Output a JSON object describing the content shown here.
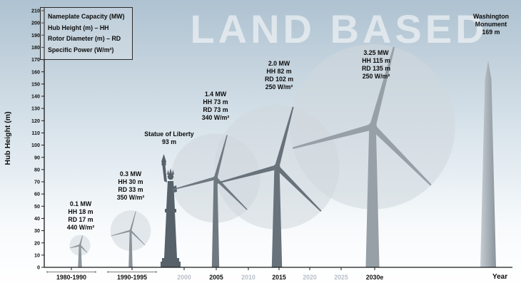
{
  "watermark": "LAND BASED",
  "axes": {
    "ylabel": "Hub Height (m)",
    "xlabel": "Year"
  },
  "legend": {
    "lines": [
      "Nameplate Capacity (MW)",
      "Hub Height (m) – HH",
      "Rotor Diameter (m) – RD",
      "Specific Power (W/m²)"
    ]
  },
  "colors": {
    "rotor_circle": "#cfd7dd",
    "ink": "#111111",
    "muted_tick": "#b6bfc7",
    "silhouette": "#57616a",
    "monument_light": "#c6cdd3",
    "monument_dark": "#8a939b",
    "turbine_grays": [
      "#8e979e",
      "#8a939a",
      "#6f7980",
      "#68727a",
      "#97a0a7"
    ]
  },
  "chart_data": {
    "type": "scatter",
    "title": "LAND BASED",
    "ylabel": "Hub Height (m)",
    "xlabel": "Year",
    "ylim": [
      0,
      210
    ],
    "y_tick_step": 10,
    "x_ticks": [
      {
        "label": "1980-1990",
        "emphasis": true
      },
      {
        "label": "1990-1995",
        "emphasis": true
      },
      {
        "label": "2000",
        "emphasis": false
      },
      {
        "label": "2005",
        "emphasis": true
      },
      {
        "label": "2010",
        "emphasis": false
      },
      {
        "label": "2015",
        "emphasis": true
      },
      {
        "label": "2020",
        "emphasis": false
      },
      {
        "label": "2025",
        "emphasis": false
      },
      {
        "label": "2030e",
        "emphasis": true
      }
    ],
    "turbines": [
      {
        "period": "1980-1990",
        "capacity_mw": 0.1,
        "hub_height_m": 18,
        "rotor_diameter_m": 17,
        "specific_power_w_m2": 440,
        "label_lines": [
          "0.1 MW",
          "HH 18 m",
          "RD 17 m",
          "440 W/m²"
        ]
      },
      {
        "period": "1990-1995",
        "capacity_mw": 0.3,
        "hub_height_m": 30,
        "rotor_diameter_m": 33,
        "specific_power_w_m2": 350,
        "label_lines": [
          "0.3 MW",
          "HH 30 m",
          "RD 33 m",
          "350 W/m²"
        ]
      },
      {
        "period": "2005",
        "capacity_mw": 1.4,
        "hub_height_m": 73,
        "rotor_diameter_m": 73,
        "specific_power_w_m2": 340,
        "label_lines": [
          "1.4 MW",
          "HH 73 m",
          "RD 73 m",
          "340 W/m²"
        ]
      },
      {
        "period": "2015",
        "capacity_mw": 2.0,
        "hub_height_m": 82,
        "rotor_diameter_m": 102,
        "specific_power_w_m2": 250,
        "label_lines": [
          "2.0 MW",
          "HH 82 m",
          "RD 102 m",
          "250 W/m²"
        ]
      },
      {
        "period": "2030e",
        "capacity_mw": 3.25,
        "hub_height_m": 115,
        "rotor_diameter_m": 135,
        "specific_power_w_m2": 250,
        "label_lines": [
          "3.25 MW",
          "HH 115 m",
          "RD 135 m",
          "250 W/m²"
        ]
      }
    ],
    "landmarks": [
      {
        "name": "Statue of Liberty",
        "height_m": 93,
        "label_lines": [
          "Statue of Liberty",
          "93 m"
        ]
      },
      {
        "name": "Washington Monument",
        "height_m": 169,
        "label_lines": [
          "Washington Monument",
          "169 m"
        ]
      }
    ]
  }
}
